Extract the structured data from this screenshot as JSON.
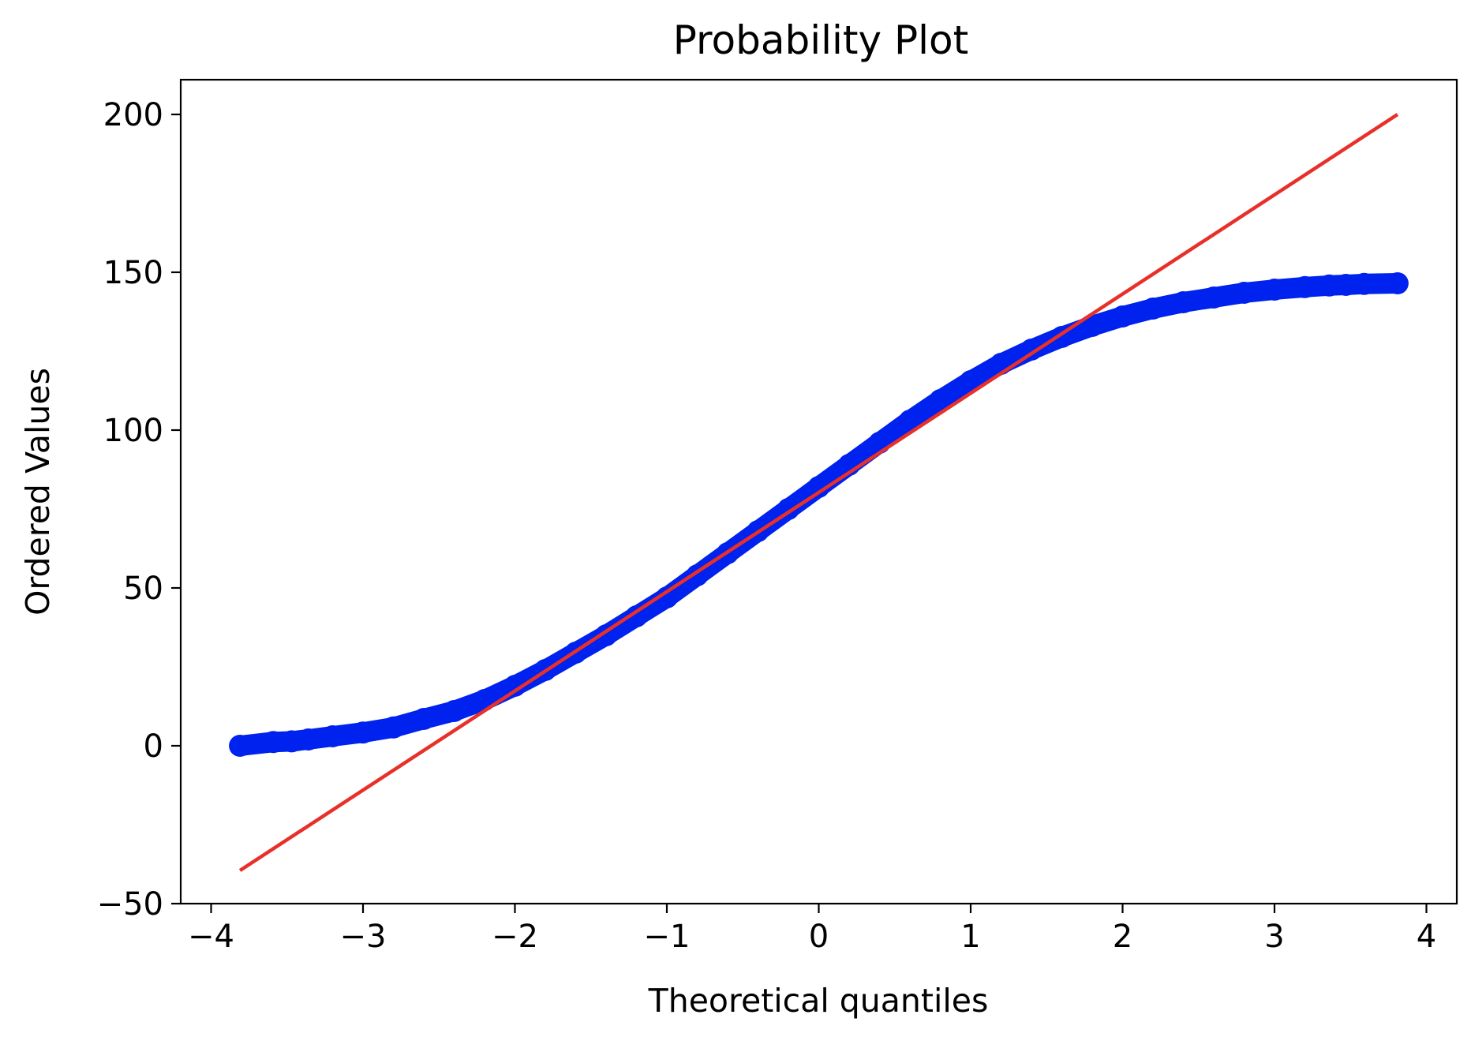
{
  "chart_data": {
    "type": "scatter",
    "title": "Probability Plot",
    "xlabel": "Theoretical quantiles",
    "ylabel": "Ordered Values",
    "xlim": [
      -4.2,
      4.2
    ],
    "ylim": [
      -50,
      211
    ],
    "x_ticks": [
      -4,
      -3,
      -2,
      -1,
      0,
      1,
      2,
      3,
      4
    ],
    "x_tick_labels": [
      "−4",
      "−3",
      "−2",
      "−1",
      "0",
      "1",
      "2",
      "3",
      "4"
    ],
    "y_ticks": [
      -50,
      0,
      50,
      100,
      150,
      200
    ],
    "y_tick_labels": [
      "−50",
      "0",
      "50",
      "100",
      "150",
      "200"
    ],
    "grid": false,
    "series": [
      {
        "kind": "points",
        "color": "#0022ee",
        "points": [
          [
            -3.81,
            0.0
          ],
          [
            -3.59,
            1.2
          ],
          [
            -3.47,
            1.4
          ],
          [
            -3.36,
            2.0
          ],
          [
            -3.2,
            3.0
          ],
          [
            -3.0,
            4.2
          ],
          [
            -2.8,
            5.8
          ],
          [
            -2.6,
            8.5
          ],
          [
            -2.4,
            11.0
          ],
          [
            -2.2,
            14.5
          ],
          [
            -2.0,
            19.0
          ],
          [
            -1.8,
            24.0
          ],
          [
            -1.6,
            29.5
          ],
          [
            -1.4,
            35.0
          ],
          [
            -1.2,
            41.0
          ],
          [
            -1.0,
            47.0
          ],
          [
            -0.8,
            54.0
          ],
          [
            -0.6,
            61.0
          ],
          [
            -0.4,
            68.0
          ],
          [
            -0.2,
            75.0
          ],
          [
            0.0,
            82.0
          ],
          [
            0.2,
            89.0
          ],
          [
            0.4,
            96.0
          ],
          [
            0.6,
            103.0
          ],
          [
            0.8,
            109.5
          ],
          [
            1.0,
            115.5
          ],
          [
            1.2,
            121.0
          ],
          [
            1.4,
            125.5
          ],
          [
            1.6,
            129.5
          ],
          [
            1.8,
            133.0
          ],
          [
            2.0,
            136.0
          ],
          [
            2.2,
            138.5
          ],
          [
            2.4,
            140.5
          ],
          [
            2.6,
            142.0
          ],
          [
            2.8,
            143.5
          ],
          [
            3.0,
            144.5
          ],
          [
            3.2,
            145.3
          ],
          [
            3.36,
            145.8
          ],
          [
            3.47,
            146.0
          ],
          [
            3.59,
            146.3
          ],
          [
            3.81,
            146.5
          ]
        ]
      },
      {
        "kind": "fit-line",
        "color": "#e8302a",
        "points": [
          [
            -3.81,
            -39.5
          ],
          [
            3.81,
            200.0
          ]
        ]
      }
    ]
  }
}
